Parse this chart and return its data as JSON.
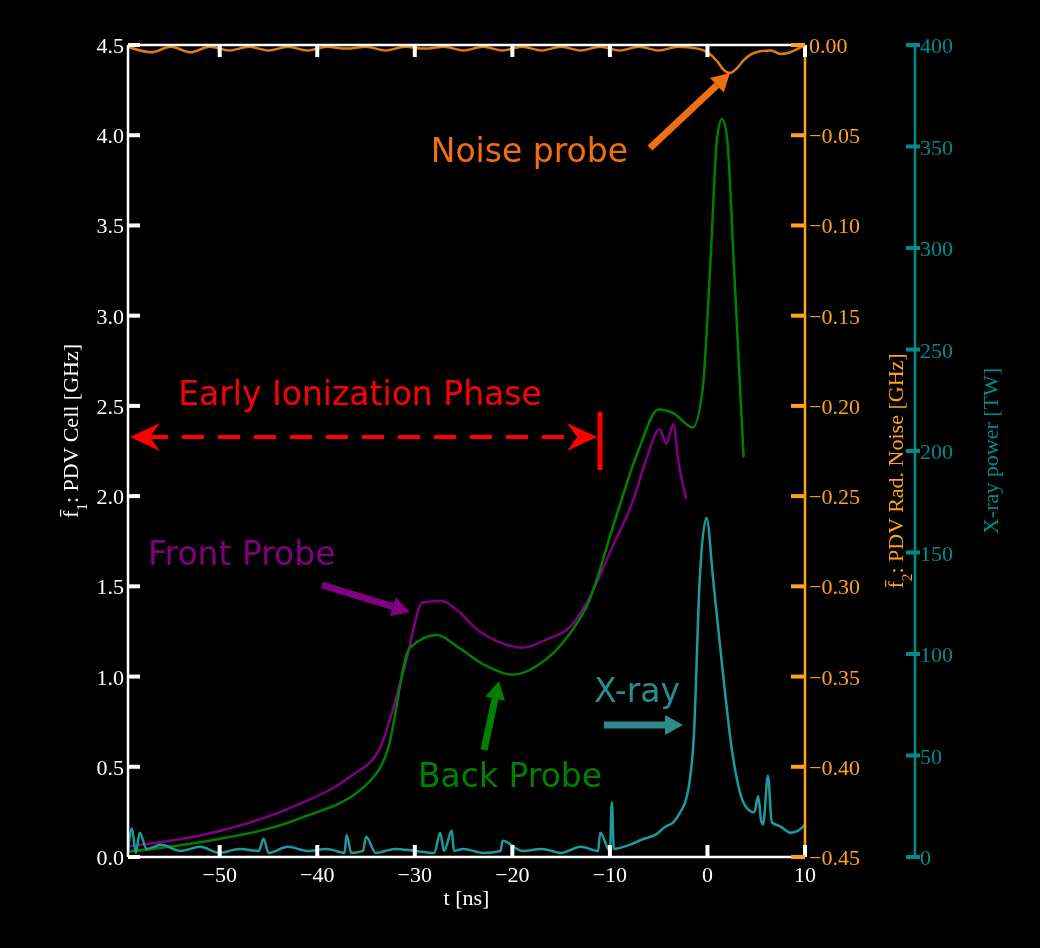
{
  "chart_data": {
    "type": "line",
    "xlabel": "t [ns]",
    "ylabel": "f̄$_{1}$: PDV Cell [GHz]",
    "y2label": "f̄$_{2}$: PDV Rad. Noise [GHz]",
    "y3label": "X-ray power [TW]",
    "xlim": [
      -59.4,
      10
    ],
    "xticks": [
      -50,
      -40,
      -30,
      -20,
      -10,
      0,
      10
    ],
    "ylim": [
      0,
      4.5
    ],
    "yticks": [
      {
        "value": 0,
        "label": "0.0"
      },
      {
        "value": 0.5,
        "label": "0.5"
      },
      {
        "value": 1,
        "label": "1.0"
      },
      {
        "value": 1.5,
        "label": "1.5"
      },
      {
        "value": 2,
        "label": "2.0"
      },
      {
        "value": 2.5,
        "label": "2.5"
      },
      {
        "value": 3,
        "label": "3.0"
      },
      {
        "value": 3.5,
        "label": "3.5"
      },
      {
        "value": 4,
        "label": "4.0"
      },
      {
        "value": 4.5,
        "label": "4.5"
      }
    ],
    "y2lim": [
      -0.45,
      0
    ],
    "y2ticks": [
      {
        "value": 0,
        "label": "0.00"
      },
      {
        "value": -0.05,
        "label": "−0.05"
      },
      {
        "value": -0.1,
        "label": "−0.10"
      },
      {
        "value": -0.15,
        "label": "−0.15"
      },
      {
        "value": -0.2,
        "label": "−0.20"
      },
      {
        "value": -0.25,
        "label": "−0.25"
      },
      {
        "value": -0.3,
        "label": "−0.30"
      },
      {
        "value": -0.35,
        "label": "−0.35"
      },
      {
        "value": -0.4,
        "label": "−0.40"
      },
      {
        "value": -0.45,
        "label": "−0.45"
      }
    ],
    "y3lim": [
      0,
      400
    ],
    "y3ticks": [
      0,
      50,
      100,
      150,
      200,
      250,
      300,
      350,
      400
    ],
    "grid": false,
    "series": [
      {
        "color": "#800080",
        "x": [
          -59.3,
          -51.1,
          -42,
          -36.5,
          -33.7,
          -31,
          -29.2,
          -27.3,
          -25.5,
          -23.6,
          -21.3,
          -19,
          -16.3,
          -14,
          -11.7,
          -9.9,
          -7.6,
          -6.3,
          -4.9,
          -4.2,
          -3.5,
          -3,
          -2.2
        ],
        "values": [
          0.06,
          0.13,
          0.29,
          0.45,
          0.59,
          1.06,
          1.41,
          1.42,
          1.36,
          1.26,
          1.19,
          1.16,
          1.21,
          1.28,
          1.48,
          1.7,
          1.98,
          2.2,
          2.37,
          2.29,
          2.4,
          2.2,
          1.99
        ]
      },
      {
        "color": "#008000",
        "x": [
          -59.3,
          -51.1,
          -42,
          -34.6,
          -32.8,
          -30.5,
          -27.7,
          -25.5,
          -22.7,
          -20,
          -17.2,
          -14.5,
          -12.2,
          -9.4,
          -7.1,
          -5,
          -3.5,
          -1.5,
          -0.5,
          0.3,
          1,
          1.5,
          2,
          2.7,
          3.7
        ],
        "values": [
          0.03,
          0.09,
          0.21,
          0.42,
          0.59,
          1.16,
          1.23,
          1.16,
          1.06,
          1.01,
          1.07,
          1.21,
          1.41,
          1.88,
          2.25,
          2.48,
          2.46,
          2.38,
          2.59,
          3.29,
          3.99,
          4.09,
          3.99,
          3.29,
          2.22
        ]
      },
      {
        "color": "#e07a12",
        "axis": "y2",
        "x": [
          -59.4,
          -57,
          -55,
          -53,
          -51,
          -49,
          -47,
          -45,
          -43,
          -41,
          -39,
          -37,
          -35,
          -33,
          -31,
          -29,
          -27,
          -25,
          -23,
          -21,
          -19,
          -17,
          -15,
          -13,
          -11,
          -9,
          -7,
          -5,
          -3,
          -1,
          0,
          1,
          1.7,
          2.3,
          3,
          3.8,
          5,
          6.5,
          7.5,
          8.5,
          9.3,
          10
        ],
        "values": [
          -0.001,
          -0.004,
          -0.001,
          -0.004,
          -0.001,
          -0.003,
          -0.001,
          -0.003,
          -0.001,
          -0.003,
          -0.001,
          -0.002,
          -0.001,
          -0.003,
          -0.001,
          -0.002,
          -0.001,
          -0.003,
          -0.001,
          -0.003,
          -0.001,
          -0.003,
          -0.001,
          -0.003,
          -0.001,
          -0.003,
          -0.001,
          -0.003,
          -0.001,
          -0.002,
          -0.004,
          -0.009,
          -0.014,
          -0.0155,
          -0.013,
          -0.008,
          -0.004,
          -0.003,
          -0.005,
          -0.004,
          -0.002,
          0
        ]
      },
      {
        "color": "#1e9a9a",
        "axis": "y3",
        "x": [
          -59.4,
          -59,
          -58.6,
          -58.2,
          -57.5,
          -56,
          -54,
          -52,
          -50,
          -48,
          -46,
          -45.5,
          -45,
          -43,
          -41,
          -39,
          -37.2,
          -37,
          -36.5,
          -35.3,
          -35,
          -34,
          -32,
          -30,
          -28,
          -27.4,
          -27,
          -26.2,
          -26,
          -25,
          -23,
          -21.2,
          -21,
          -19,
          -17,
          -15,
          -13,
          -11.2,
          -11,
          -10,
          -9.8,
          -9.6,
          -8,
          -6.5,
          -5.3,
          -4.3,
          -3.5,
          -2.8,
          -2.1,
          -1.4,
          -0.8,
          -0.1,
          0.6,
          1.6,
          2.5,
          3.9,
          4.8,
          5.2,
          5.5,
          5.7,
          6.2,
          6.6,
          7.5,
          8.5,
          9.3,
          10
        ],
        "values": [
          3,
          14,
          2,
          12,
          4,
          6,
          3,
          5,
          2,
          4,
          3,
          9,
          2,
          5,
          3,
          4,
          2,
          11,
          2,
          3,
          10,
          2,
          4,
          3,
          2,
          12,
          3,
          13,
          3,
          4,
          2,
          3,
          8,
          3,
          4,
          2,
          5,
          3,
          12,
          3,
          27,
          4,
          6,
          9,
          11,
          15,
          17,
          22,
          30,
          59,
          136,
          167,
          136,
          90,
          53,
          25,
          22,
          30,
          18,
          16,
          40,
          17,
          15,
          12,
          13,
          16
        ]
      }
    ],
    "annotations": [
      "Early Ionization Phase",
      "Front Probe",
      "Back Probe",
      "X-ray",
      "Noise probe"
    ]
  }
}
